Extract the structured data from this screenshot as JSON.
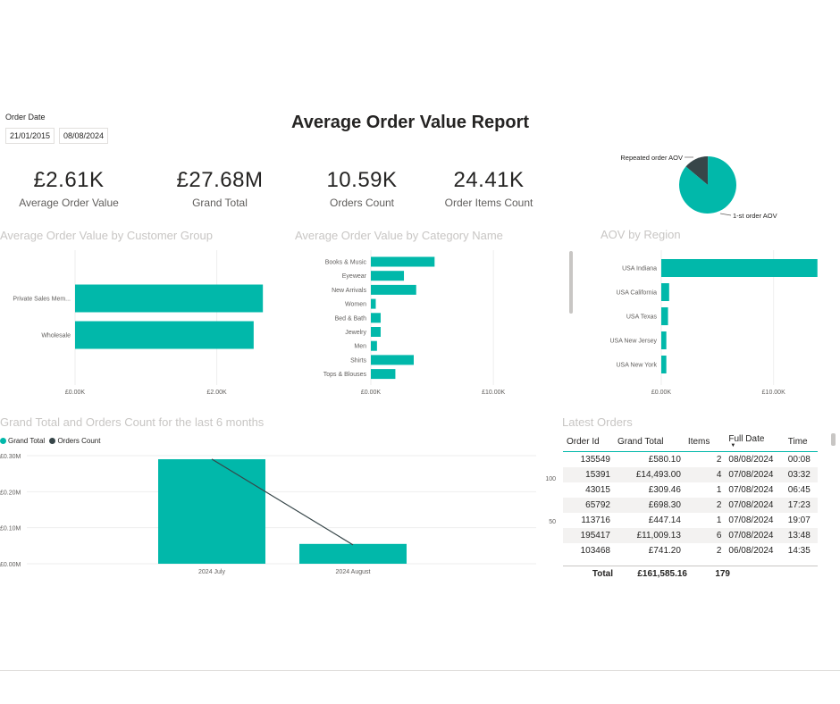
{
  "slicer": {
    "label": "Order Date",
    "start": "21/01/2015",
    "end": "08/08/2024"
  },
  "title": "Average Order Value Report",
  "kpis": [
    {
      "value": "£2.61K",
      "label": "Average Order Value"
    },
    {
      "value": "£27.68M",
      "label": "Grand Total"
    },
    {
      "value": "10.59K",
      "label": "Orders Count"
    },
    {
      "value": "24.41K",
      "label": "Order Items Count"
    }
  ],
  "colors": {
    "teal": "#01b8aa",
    "dark": "#374649",
    "title_grey": "#c8c6c4"
  },
  "chart_data": [
    {
      "id": "pie",
      "type": "pie",
      "categories": [
        "Repeated order AOV",
        "1-st order AOV"
      ],
      "values": [
        0.14,
        0.86
      ],
      "labels": [
        "Repeated order AOV",
        "1-st order AOV"
      ]
    },
    {
      "id": "customer_group",
      "type": "bar",
      "title": "Average Order Value by Customer Group",
      "categories": [
        "Private Sales Mem...",
        "Wholesale"
      ],
      "values": [
        2650,
        2520
      ],
      "xlim": [
        0,
        2900
      ],
      "ticks": [
        0,
        2000
      ],
      "tick_labels": [
        "£0.00K",
        "£2.00K"
      ]
    },
    {
      "id": "category",
      "type": "bar",
      "title": "Average Order Value by Category Name",
      "categories": [
        "Books & Music",
        "Eyewear",
        "New Arrivals",
        "Women",
        "Bed & Bath",
        "Jewelry",
        "Men",
        "Shirts",
        "Tops & Blouses"
      ],
      "values": [
        5200,
        2700,
        3700,
        400,
        800,
        800,
        500,
        3500,
        2000
      ],
      "xlim": [
        0,
        10500
      ],
      "ticks": [
        0,
        10000
      ],
      "tick_labels": [
        "£0.00K",
        "£10.00K"
      ]
    },
    {
      "id": "region",
      "type": "bar",
      "title": "AOV by Region",
      "categories": [
        "USA Indiana",
        "USA California",
        "USA Texas",
        "USA New Jersey",
        "USA New York"
      ],
      "values": [
        13900,
        700,
        600,
        450,
        450
      ],
      "xlim": [
        0,
        14000
      ],
      "ticks": [
        0,
        10000
      ],
      "tick_labels": [
        "£0.00K",
        "£10.00K"
      ]
    },
    {
      "id": "combo",
      "type": "bar",
      "title": "Grand Total and Orders Count for the last 6 months",
      "categories": [
        "2024 July",
        "2024 August"
      ],
      "series": [
        {
          "name": "Grand Total",
          "values": [
            0.29,
            0.055
          ]
        },
        {
          "name": "Orders Count",
          "values": [
            122,
            22
          ]
        }
      ],
      "ylim": [
        0,
        0.3
      ],
      "yticks": [
        0,
        0.1,
        0.2,
        0.3
      ],
      "ytick_labels": [
        "£0.00M",
        "£0.10M",
        "£0.20M",
        "£0.30M"
      ],
      "y2lim": [
        0,
        126
      ],
      "y2ticks": [
        50,
        100
      ],
      "y2tick_labels": [
        "50",
        "100"
      ]
    }
  ],
  "latest_orders": {
    "title": "Latest Orders",
    "columns": [
      "Order Id",
      "Grand Total",
      "Items",
      "Full Date",
      "Time"
    ],
    "rows": [
      [
        "135549",
        "£580.10",
        "2",
        "08/08/2024",
        "00:08"
      ],
      [
        "15391",
        "£14,493.00",
        "4",
        "07/08/2024",
        "03:32"
      ],
      [
        "43015",
        "£309.46",
        "1",
        "07/08/2024",
        "06:45"
      ],
      [
        "65792",
        "£698.30",
        "2",
        "07/08/2024",
        "17:23"
      ],
      [
        "113716",
        "£447.14",
        "1",
        "07/08/2024",
        "19:07"
      ],
      [
        "195417",
        "£11,009.13",
        "6",
        "07/08/2024",
        "13:48"
      ],
      [
        "103468",
        "£741.20",
        "2",
        "06/08/2024",
        "14:35"
      ]
    ],
    "total": {
      "label": "Total",
      "grand_total": "£161,585.16",
      "items": "179"
    }
  }
}
